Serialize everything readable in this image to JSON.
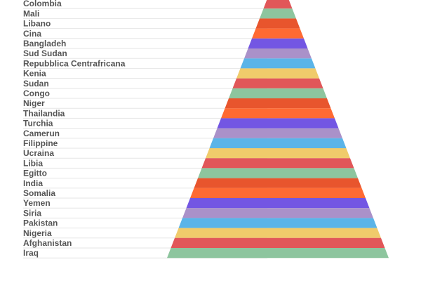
{
  "chart_data": {
    "type": "bar",
    "subtype": "pyramid",
    "title": "",
    "xlabel": "",
    "ylabel": "",
    "grid": false,
    "legend": "none",
    "categories": [
      "Colombia",
      "Mali",
      "Libano",
      "Cina",
      "Bangladeh",
      "Sud Sudan",
      "Repubblica Centrafricana",
      "Kenia",
      "Sudan",
      "Congo",
      "Niger",
      "Thailandia",
      "Turchia",
      "Camerun",
      "Filippine",
      "Ucraina",
      "Libia",
      "Egitto",
      "India",
      "Somalia",
      "Yemen",
      "Siria",
      "Pakistan",
      "Nigeria",
      "Afghanistan",
      "Iraq"
    ],
    "values": [
      1,
      2,
      3,
      4,
      5,
      6,
      7,
      8,
      9,
      10,
      11,
      12,
      13,
      14,
      15,
      16,
      17,
      18,
      19,
      20,
      21,
      22,
      23,
      24,
      25,
      26
    ],
    "palette": [
      "#e15759",
      "#8dc59e",
      "#e8552d",
      "#ff6a33",
      "#7356e3",
      "#aa91c9",
      "#5ab4e8",
      "#f0cb6b"
    ]
  }
}
